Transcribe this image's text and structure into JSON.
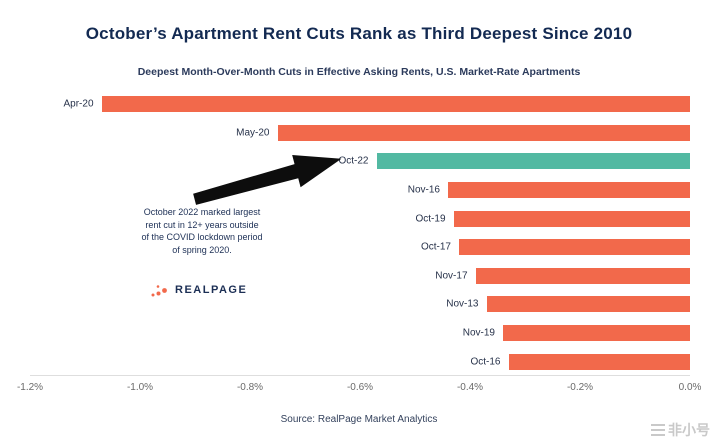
{
  "title": "October’s Apartment Rent Cuts Rank as Third Deepest Since 2010",
  "subtitle": "Deepest Month-Over-Month Cuts in Effective Asking Rents, U.S. Market-Rate Apartments",
  "source": "Source: RealPage Market Analytics",
  "watermark": "非小号",
  "annotation": {
    "text": "October 2022 marked largest rent cut in 12+ years outside of the COVID lockdown period of spring 2020."
  },
  "logo": {
    "text": "REALPAGE"
  },
  "colors": {
    "bar": "#f2694b",
    "highlight": "#52b9a2",
    "title": "#132a52",
    "axis_text": "#6a6a6a"
  },
  "chart_data": {
    "type": "bar",
    "orientation": "horizontal",
    "title": "October’s Apartment Rent Cuts Rank as Third Deepest Since 2010",
    "subtitle": "Deepest Month-Over-Month Cuts in Effective Asking Rents, U.S. Market-Rate Apartments",
    "categories": [
      "Apr-20",
      "May-20",
      "Oct-22",
      "Nov-16",
      "Oct-19",
      "Oct-17",
      "Nov-17",
      "Nov-13",
      "Nov-19",
      "Oct-16"
    ],
    "values": [
      -1.07,
      -0.75,
      -0.57,
      -0.44,
      -0.43,
      -0.42,
      -0.39,
      -0.37,
      -0.34,
      -0.33
    ],
    "highlight_category": "Oct-22",
    "x_ticks": [
      "-1.2%",
      "-1.0%",
      "-0.8%",
      "-0.6%",
      "-0.4%",
      "-0.2%",
      "0.0%"
    ],
    "xlim": [
      -1.2,
      0
    ],
    "xlabel": "",
    "ylabel": "",
    "grid": false,
    "legend": "none"
  }
}
